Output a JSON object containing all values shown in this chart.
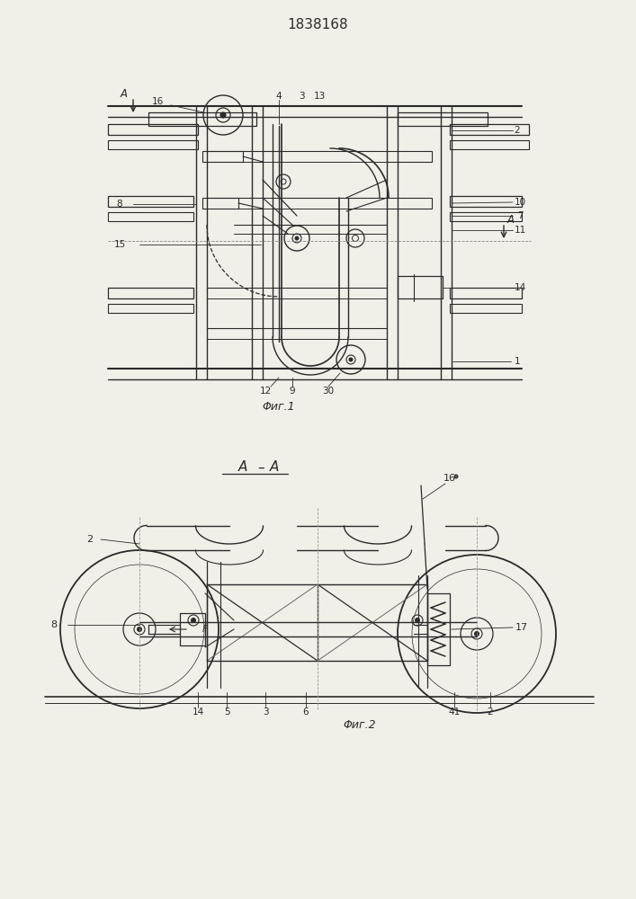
{
  "title": "1838168",
  "bg_color": "#f0efe8",
  "line_color": "#2a2a2a",
  "fig1_caption": "Φиг.1",
  "fig2_caption": "Φиг.2",
  "fig2_section": "A–A",
  "fig_width": 7.07,
  "fig_height": 10.0
}
